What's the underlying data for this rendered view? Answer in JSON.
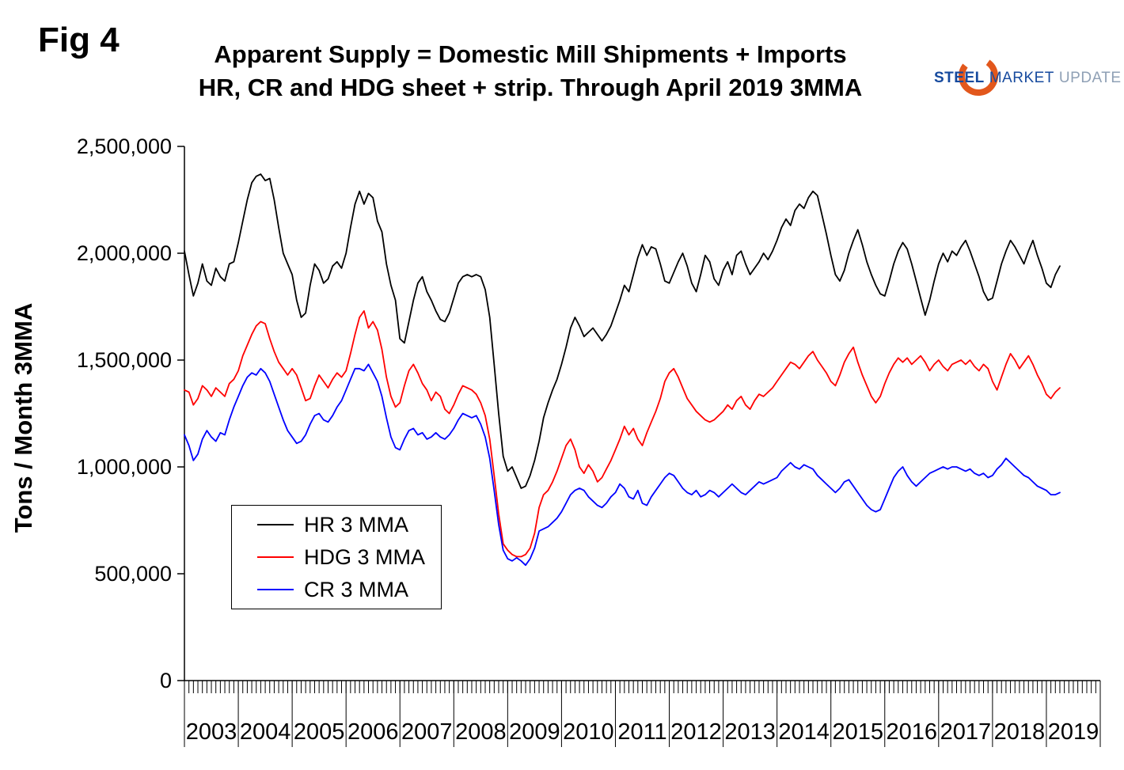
{
  "figure_label": "Fig 4",
  "title": {
    "line1": "Apparent Supply = Domestic Mill Shipments + Imports",
    "line2": "HR, CR and HDG sheet + strip. Through April 2019 3MMA"
  },
  "logo": {
    "steel": "STEEL",
    "market": "MARKET",
    "update": "UPDATE",
    "swoosh_color": "#e2571c"
  },
  "y_axis_label": "Tons / Month 3MMA",
  "chart_data": {
    "type": "line",
    "title": "Apparent Supply = Domestic Mill Shipments + Imports",
    "subtitle": "HR, CR and HDG sheet + strip. Through April 2019 3MMA",
    "ylabel": "Tons / Month 3MMA",
    "xlabel": "",
    "ylim": [
      0,
      2500000
    ],
    "yticks": [
      0,
      500000,
      1000000,
      1500000,
      2000000,
      2500000
    ],
    "ytick_labels": [
      "0",
      "500,000",
      "1,000,000",
      "1,500,000",
      "2,000,000",
      "2,500,000"
    ],
    "x_axis_years": [
      "2003",
      "2004",
      "2005",
      "2006",
      "2007",
      "2008",
      "2009",
      "2010",
      "2011",
      "2012",
      "2013",
      "2014",
      "2015",
      "2016",
      "2017",
      "2018",
      "2019"
    ],
    "x_start": "2003-01",
    "x_end": "2019-04",
    "frequency": "monthly",
    "grid": false,
    "legend_position": "inside-lower-left",
    "axis_color": "#000000",
    "background": "#ffffff",
    "series": [
      {
        "id": "hr",
        "name": "HR 3 MMA",
        "color": "#000000",
        "values": [
          2010000,
          1900000,
          1800000,
          1860000,
          1950000,
          1870000,
          1850000,
          1930000,
          1890000,
          1870000,
          1950000,
          1960000,
          2050000,
          2150000,
          2250000,
          2330000,
          2360000,
          2370000,
          2340000,
          2350000,
          2250000,
          2120000,
          2000000,
          1950000,
          1900000,
          1780000,
          1700000,
          1720000,
          1850000,
          1950000,
          1920000,
          1860000,
          1880000,
          1940000,
          1960000,
          1930000,
          2000000,
          2120000,
          2230000,
          2290000,
          2230000,
          2280000,
          2260000,
          2150000,
          2100000,
          1950000,
          1850000,
          1780000,
          1600000,
          1580000,
          1680000,
          1780000,
          1860000,
          1890000,
          1820000,
          1780000,
          1730000,
          1690000,
          1680000,
          1720000,
          1790000,
          1860000,
          1890000,
          1900000,
          1890000,
          1900000,
          1890000,
          1830000,
          1700000,
          1480000,
          1250000,
          1050000,
          980000,
          1000000,
          950000,
          900000,
          910000,
          960000,
          1030000,
          1120000,
          1230000,
          1300000,
          1360000,
          1410000,
          1480000,
          1560000,
          1650000,
          1700000,
          1660000,
          1610000,
          1630000,
          1650000,
          1620000,
          1590000,
          1620000,
          1660000,
          1720000,
          1780000,
          1850000,
          1820000,
          1900000,
          1980000,
          2040000,
          1990000,
          2030000,
          2020000,
          1950000,
          1870000,
          1860000,
          1910000,
          1960000,
          2000000,
          1940000,
          1860000,
          1820000,
          1900000,
          1990000,
          1960000,
          1880000,
          1850000,
          1920000,
          1960000,
          1900000,
          1990000,
          2010000,
          1950000,
          1900000,
          1930000,
          1960000,
          2000000,
          1970000,
          2010000,
          2060000,
          2120000,
          2160000,
          2130000,
          2200000,
          2230000,
          2210000,
          2260000,
          2290000,
          2270000,
          2180000,
          2090000,
          1990000,
          1900000,
          1870000,
          1920000,
          2000000,
          2060000,
          2110000,
          2040000,
          1960000,
          1900000,
          1850000,
          1810000,
          1800000,
          1870000,
          1950000,
          2010000,
          2050000,
          2020000,
          1950000,
          1870000,
          1790000,
          1710000,
          1780000,
          1870000,
          1950000,
          2000000,
          1960000,
          2010000,
          1990000,
          2030000,
          2060000,
          2010000,
          1950000,
          1890000,
          1820000,
          1780000,
          1790000,
          1870000,
          1950000,
          2010000,
          2060000,
          2030000,
          1990000,
          1950000,
          2010000,
          2060000,
          1990000,
          1930000,
          1860000,
          1840000,
          1900000,
          1940000
        ]
      },
      {
        "id": "hdg",
        "name": "HDG 3 MMA",
        "color": "#ff0000",
        "values": [
          1360000,
          1350000,
          1290000,
          1320000,
          1380000,
          1360000,
          1330000,
          1370000,
          1350000,
          1330000,
          1390000,
          1410000,
          1450000,
          1520000,
          1570000,
          1620000,
          1660000,
          1680000,
          1670000,
          1600000,
          1540000,
          1490000,
          1460000,
          1430000,
          1460000,
          1430000,
          1370000,
          1310000,
          1320000,
          1380000,
          1430000,
          1400000,
          1370000,
          1410000,
          1440000,
          1420000,
          1450000,
          1530000,
          1620000,
          1700000,
          1730000,
          1650000,
          1680000,
          1640000,
          1550000,
          1420000,
          1330000,
          1280000,
          1300000,
          1380000,
          1450000,
          1480000,
          1440000,
          1390000,
          1360000,
          1310000,
          1350000,
          1330000,
          1270000,
          1250000,
          1290000,
          1340000,
          1380000,
          1370000,
          1360000,
          1340000,
          1300000,
          1240000,
          1130000,
          960000,
          780000,
          640000,
          610000,
          590000,
          580000,
          580000,
          590000,
          620000,
          690000,
          810000,
          870000,
          890000,
          930000,
          980000,
          1040000,
          1100000,
          1130000,
          1080000,
          1000000,
          970000,
          1010000,
          980000,
          930000,
          950000,
          990000,
          1030000,
          1080000,
          1130000,
          1190000,
          1150000,
          1180000,
          1130000,
          1100000,
          1160000,
          1210000,
          1260000,
          1320000,
          1400000,
          1440000,
          1460000,
          1420000,
          1370000,
          1320000,
          1290000,
          1260000,
          1240000,
          1220000,
          1210000,
          1220000,
          1240000,
          1260000,
          1290000,
          1270000,
          1310000,
          1330000,
          1290000,
          1270000,
          1310000,
          1340000,
          1330000,
          1350000,
          1370000,
          1400000,
          1430000,
          1460000,
          1490000,
          1480000,
          1460000,
          1490000,
          1520000,
          1540000,
          1500000,
          1470000,
          1440000,
          1400000,
          1380000,
          1430000,
          1490000,
          1530000,
          1560000,
          1490000,
          1430000,
          1380000,
          1330000,
          1300000,
          1330000,
          1390000,
          1440000,
          1480000,
          1510000,
          1490000,
          1510000,
          1480000,
          1500000,
          1520000,
          1490000,
          1450000,
          1480000,
          1500000,
          1470000,
          1450000,
          1480000,
          1490000,
          1500000,
          1480000,
          1500000,
          1470000,
          1450000,
          1480000,
          1460000,
          1400000,
          1360000,
          1420000,
          1480000,
          1530000,
          1500000,
          1460000,
          1490000,
          1520000,
          1480000,
          1430000,
          1390000,
          1340000,
          1320000,
          1350000,
          1370000
        ]
      },
      {
        "id": "cr",
        "name": "CR 3 MMA",
        "color": "#0000ff",
        "values": [
          1150000,
          1100000,
          1030000,
          1060000,
          1130000,
          1170000,
          1140000,
          1120000,
          1160000,
          1150000,
          1220000,
          1280000,
          1330000,
          1380000,
          1420000,
          1440000,
          1430000,
          1460000,
          1440000,
          1400000,
          1340000,
          1280000,
          1220000,
          1170000,
          1140000,
          1110000,
          1120000,
          1150000,
          1200000,
          1240000,
          1250000,
          1220000,
          1210000,
          1240000,
          1280000,
          1310000,
          1360000,
          1410000,
          1460000,
          1460000,
          1450000,
          1480000,
          1440000,
          1400000,
          1330000,
          1230000,
          1140000,
          1090000,
          1080000,
          1130000,
          1170000,
          1180000,
          1150000,
          1160000,
          1130000,
          1140000,
          1160000,
          1140000,
          1130000,
          1150000,
          1180000,
          1220000,
          1250000,
          1240000,
          1230000,
          1240000,
          1200000,
          1140000,
          1040000,
          890000,
          730000,
          610000,
          570000,
          560000,
          575000,
          560000,
          540000,
          570000,
          620000,
          700000,
          710000,
          720000,
          740000,
          760000,
          790000,
          830000,
          870000,
          890000,
          900000,
          890000,
          860000,
          840000,
          820000,
          810000,
          830000,
          860000,
          880000,
          920000,
          900000,
          860000,
          850000,
          890000,
          830000,
          820000,
          860000,
          890000,
          920000,
          950000,
          970000,
          960000,
          930000,
          900000,
          880000,
          870000,
          890000,
          860000,
          870000,
          890000,
          880000,
          860000,
          880000,
          900000,
          920000,
          900000,
          880000,
          870000,
          890000,
          910000,
          930000,
          920000,
          930000,
          940000,
          950000,
          980000,
          1000000,
          1020000,
          1000000,
          990000,
          1010000,
          1000000,
          990000,
          960000,
          940000,
          920000,
          900000,
          880000,
          900000,
          930000,
          940000,
          910000,
          880000,
          850000,
          820000,
          800000,
          790000,
          800000,
          850000,
          900000,
          950000,
          980000,
          1000000,
          960000,
          930000,
          910000,
          930000,
          950000,
          970000,
          980000,
          990000,
          1000000,
          990000,
          1000000,
          1000000,
          990000,
          980000,
          990000,
          970000,
          960000,
          970000,
          950000,
          960000,
          990000,
          1010000,
          1040000,
          1020000,
          1000000,
          980000,
          960000,
          950000,
          930000,
          910000,
          900000,
          890000,
          870000,
          870000,
          880000
        ]
      }
    ]
  }
}
